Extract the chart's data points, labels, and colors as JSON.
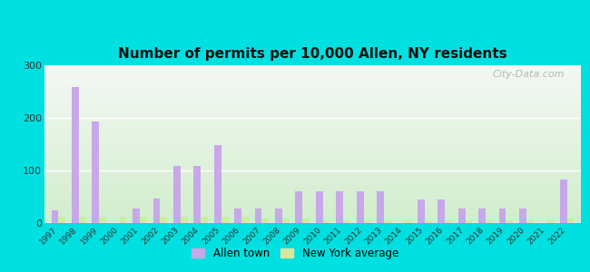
{
  "title": "Number of permits per 10,000 Allen, NY residents",
  "years": [
    1997,
    1998,
    1999,
    2000,
    2001,
    2002,
    2003,
    2004,
    2005,
    2006,
    2007,
    2008,
    2009,
    2010,
    2011,
    2012,
    2013,
    2014,
    2015,
    2016,
    2017,
    2018,
    2019,
    2020,
    2021,
    2022
  ],
  "allen_values": [
    25,
    258,
    193,
    0,
    27,
    47,
    108,
    108,
    148,
    27,
    27,
    27,
    60,
    60,
    60,
    60,
    60,
    0,
    45,
    45,
    27,
    27,
    27,
    27,
    0,
    83
  ],
  "ny_values": [
    12,
    12,
    12,
    12,
    12,
    12,
    12,
    12,
    12,
    12,
    8,
    8,
    8,
    5,
    5,
    5,
    5,
    5,
    5,
    5,
    5,
    5,
    5,
    5,
    5,
    8
  ],
  "allen_color": "#c8a8e8",
  "ny_color": "#d4e8a0",
  "bg_color_outer": "#00e0e0",
  "ylim": [
    0,
    300
  ],
  "yticks": [
    0,
    100,
    200,
    300
  ],
  "bar_width": 0.35,
  "legend_allen": "Allen town",
  "legend_ny": "New York average",
  "watermark": "City-Data.com"
}
